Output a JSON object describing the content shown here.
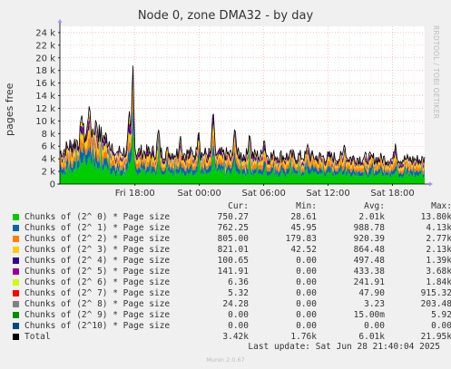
{
  "chart_data": {
    "type": "area",
    "title": "Node 0, zone DMA32 - by day",
    "ylabel": "pages free",
    "ylim": [
      0,
      25000
    ],
    "yticks": [
      0,
      2000,
      4000,
      6000,
      8000,
      10000,
      12000,
      14000,
      16000,
      18000,
      20000,
      22000,
      24000
    ],
    "ytick_labels": [
      "0",
      "2 k",
      "4 k",
      "6 k",
      "8 k",
      "10 k",
      "12 k",
      "14 k",
      "16 k",
      "18 k",
      "20 k",
      "22 k",
      "24 k"
    ],
    "xticks": [
      "Fri 18:00",
      "Sat 00:00",
      "Sat 06:00",
      "Sat 12:00",
      "Sat 18:00"
    ],
    "x_range_hours": [
      11,
      45
    ],
    "xtick_hours": [
      18,
      24,
      30,
      36,
      42
    ],
    "grid": true,
    "stacked": true,
    "series": [
      {
        "name": "Chunks of (2^ 0) * Page size",
        "color": "#00cc00",
        "cur": "750.27",
        "min": "28.61",
        "avg": "2.01k",
        "max": "13.80k"
      },
      {
        "name": "Chunks of (2^ 1) * Page size",
        "color": "#0066b3",
        "cur": "762.25",
        "min": "45.95",
        "avg": "988.78",
        "max": "4.13k"
      },
      {
        "name": "Chunks of (2^ 2) * Page size",
        "color": "#ff8000",
        "cur": "805.00",
        "min": "179.83",
        "avg": "920.39",
        "max": "2.77k"
      },
      {
        "name": "Chunks of (2^ 3) * Page size",
        "color": "#ffcc00",
        "cur": "821.01",
        "min": "42.52",
        "avg": "864.48",
        "max": "2.13k"
      },
      {
        "name": "Chunks of (2^ 4) * Page size",
        "color": "#330099",
        "cur": "100.65",
        "min": "0.00",
        "avg": "497.48",
        "max": "1.39k"
      },
      {
        "name": "Chunks of (2^ 5) * Page size",
        "color": "#990099",
        "cur": "141.91",
        "min": "0.00",
        "avg": "433.38",
        "max": "3.68k"
      },
      {
        "name": "Chunks of (2^ 6) * Page size",
        "color": "#ccff00",
        "cur": "6.36",
        "min": "0.00",
        "avg": "241.91",
        "max": "1.84k"
      },
      {
        "name": "Chunks of (2^ 7) * Page size",
        "color": "#ff0000",
        "cur": "5.32",
        "min": "0.00",
        "avg": "47.90",
        "max": "915.32"
      },
      {
        "name": "Chunks of (2^ 8) * Page size",
        "color": "#808080",
        "cur": "24.28",
        "min": "0.00",
        "avg": "3.23",
        "max": "203.48"
      },
      {
        "name": "Chunks of (2^ 9) * Page size",
        "color": "#008f00",
        "cur": "0.00",
        "min": "0.00",
        "avg": "15.00m",
        "max": "5.92"
      },
      {
        "name": "Chunks of (2^10) * Page size",
        "color": "#00487d",
        "cur": "0.00",
        "min": "0.00",
        "avg": "0.00",
        "max": "0.00"
      },
      {
        "name": "Total",
        "color": "#000000",
        "cur": "3.42k",
        "min": "1.76k",
        "avg": "6.01k",
        "max": "21.95k"
      }
    ],
    "legend_headers": {
      "cur": "Cur:",
      "min": "Min:",
      "avg": "Avg:",
      "max": "Max:"
    }
  },
  "watermark": "RRDTOOL / TOBI OETIKER",
  "last_update": "Last update:  Sat Jun 28 21:40:04 2025",
  "footer": "Munin 2.0.67"
}
